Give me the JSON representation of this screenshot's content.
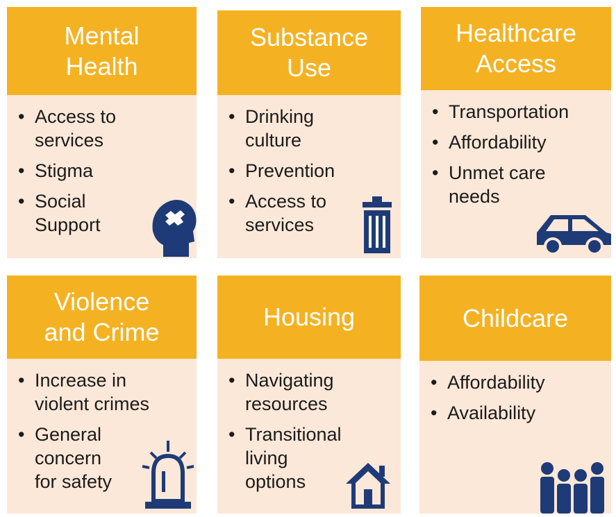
{
  "cards": [
    {
      "title": [
        "Mental",
        "Health"
      ],
      "bullets": [
        [
          "Access to",
          "services"
        ],
        [
          "Stigma"
        ],
        [
          "Social",
          "Support"
        ]
      ]
    },
    {
      "title": [
        "Substance",
        "Use"
      ],
      "bullets": [
        [
          "Drinking",
          "culture"
        ],
        [
          "Prevention"
        ],
        [
          "Access to",
          "services"
        ]
      ]
    },
    {
      "title": [
        "Healthcare",
        "Access"
      ],
      "bullets": [
        [
          "Transportation"
        ],
        [
          "Affordability"
        ],
        [
          "Unmet care",
          "needs"
        ]
      ]
    },
    {
      "title": [
        "Violence",
        "and Crime"
      ],
      "bullets": [
        [
          "Increase in",
          "violent crimes"
        ],
        [
          "General",
          "concern",
          "for safety"
        ]
      ]
    },
    {
      "title": [
        "Housing"
      ],
      "bullets": [
        [
          "Navigating",
          "resources"
        ],
        [
          "Transitional",
          "living",
          "options"
        ]
      ]
    },
    {
      "title": [
        "Childcare"
      ],
      "bullets": [
        [
          "Affordability"
        ],
        [
          "Availability"
        ]
      ]
    }
  ]
}
